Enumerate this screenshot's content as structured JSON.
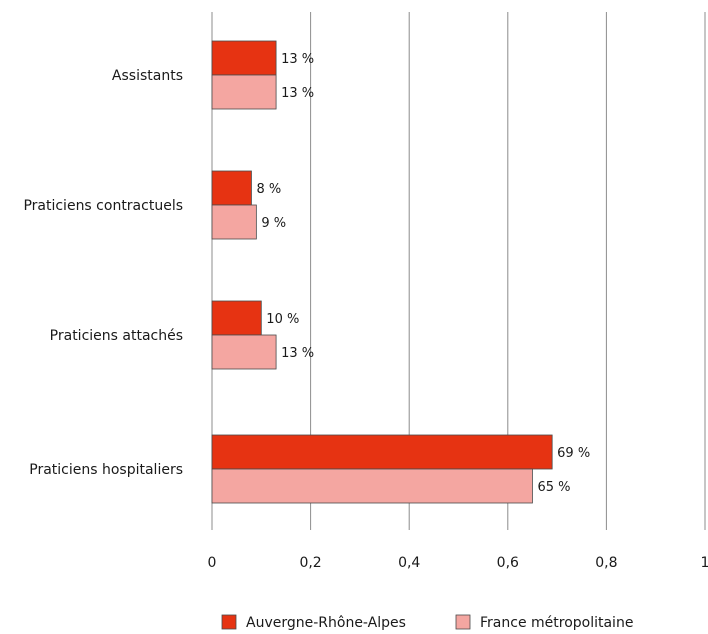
{
  "chart_data": {
    "type": "bar",
    "orientation": "horizontal",
    "categories": [
      "Assistants",
      "Praticiens contractuels",
      "Praticiens attachés",
      "Praticiens hospitaliers"
    ],
    "series": [
      {
        "name": "Auvergne-Rhône-Alpes",
        "color": "#e63312",
        "values": [
          0.13,
          0.08,
          0.1,
          0.69
        ],
        "labels": [
          "13 %",
          "8 %",
          "10 %",
          "69 %"
        ]
      },
      {
        "name": "France métropolitaine",
        "color": "#f4a6a1",
        "values": [
          0.13,
          0.09,
          0.13,
          0.65
        ],
        "labels": [
          "13 %",
          "9 %",
          "13 %",
          "65 %"
        ]
      }
    ],
    "xlim": [
      0,
      1
    ],
    "xticks": [
      0,
      0.2,
      0.4,
      0.6,
      0.8,
      1
    ],
    "xtick_labels": [
      "0",
      "0,2",
      "0,4",
      "0,6",
      "0,8",
      "1"
    ],
    "grid": true,
    "legend_position": "bottom"
  }
}
